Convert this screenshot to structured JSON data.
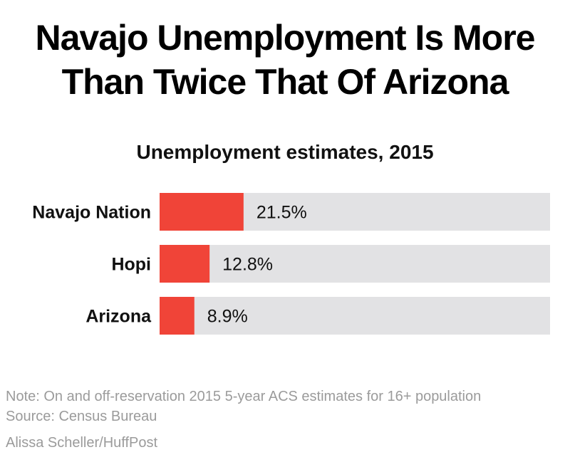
{
  "title_lines": [
    "Navajo Unemployment Is More",
    "Than Twice That Of Arizona"
  ],
  "chart_data": {
    "type": "bar",
    "orientation": "horizontal",
    "title": "Unemployment estimates, 2015",
    "categories": [
      "Navajo Nation",
      "Hopi",
      "Arizona"
    ],
    "values": [
      21.5,
      12.8,
      8.9
    ],
    "value_labels": [
      "21.5%",
      "12.8%",
      "8.9%"
    ],
    "xlim": [
      0,
      100
    ],
    "grid": false,
    "legend": "none",
    "bar_color": "#f04438",
    "track_color": "#e2e2e4"
  },
  "notes": {
    "note": "Note: On and off-reservation 2015 5-year ACS estimates for 16+ population",
    "source": "Source: Census Bureau",
    "credit": "Alissa Scheller/HuffPost"
  }
}
